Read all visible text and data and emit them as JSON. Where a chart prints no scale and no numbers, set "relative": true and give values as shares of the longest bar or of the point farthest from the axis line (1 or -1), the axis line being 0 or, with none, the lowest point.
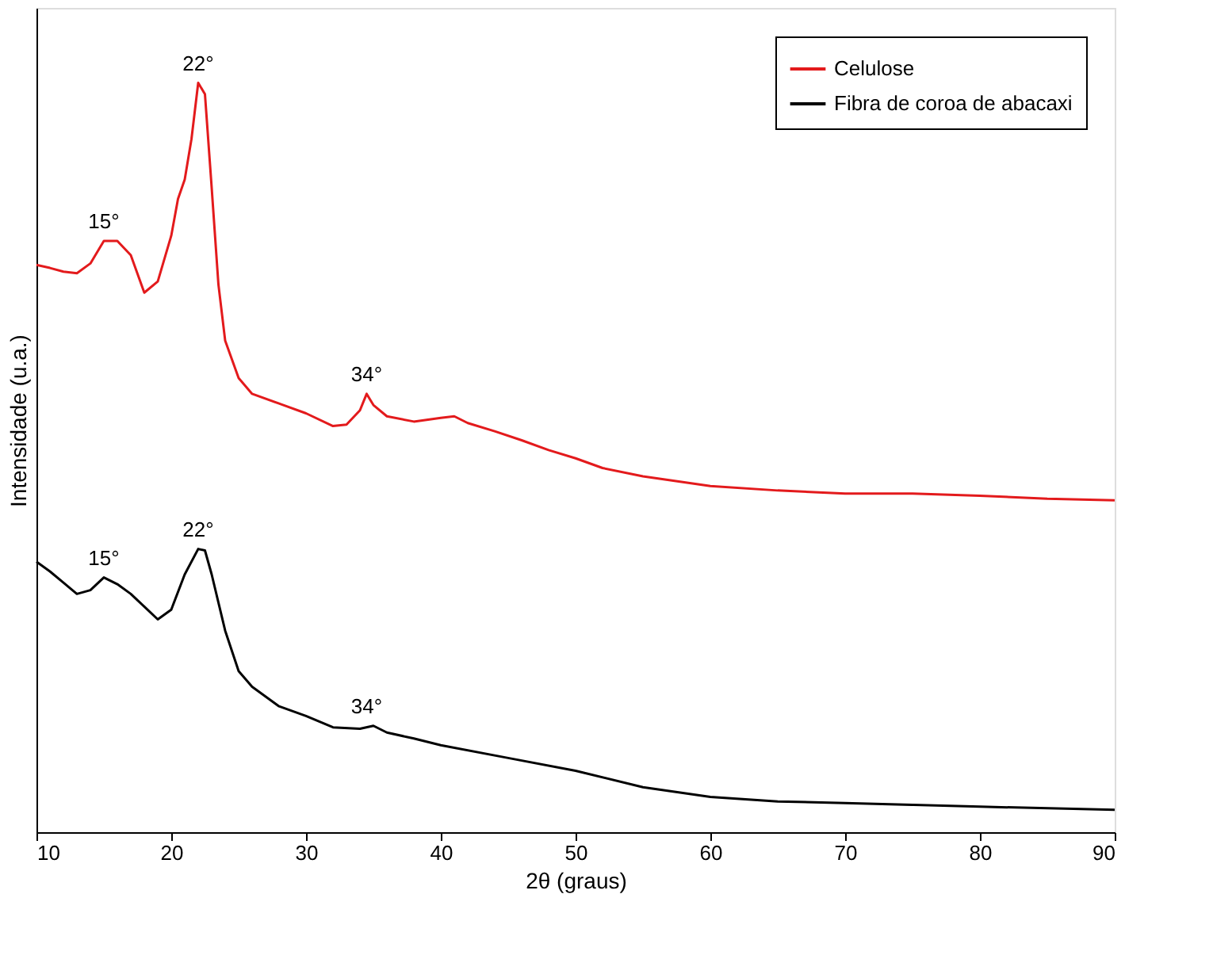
{
  "chart_data": {
    "type": "line",
    "relative": true,
    "xlabel": "2θ (graus)",
    "ylabel": "Intensidade (u.a.)",
    "xlim": [
      10,
      90
    ],
    "xticks": [
      10,
      20,
      30,
      40,
      50,
      60,
      70,
      80,
      90
    ],
    "tick_labels": "x",
    "grid": false,
    "legend": "top right",
    "line_style": "solid",
    "marker": "none",
    "series": [
      {
        "name": "Celulose",
        "color": "#e31a1c",
        "x": [
          10,
          11,
          12,
          13,
          14,
          15,
          16,
          17,
          18,
          19,
          20,
          20.5,
          21,
          21.5,
          22,
          22.5,
          23,
          23.5,
          24,
          25,
          26,
          28,
          30,
          32,
          33,
          34,
          34.5,
          35,
          36,
          38,
          40,
          41,
          42,
          44,
          46,
          48,
          50,
          52,
          55,
          60,
          65,
          70,
          75,
          80,
          85,
          90
        ],
        "values": [
          0.757,
          0.753,
          0.748,
          0.746,
          0.759,
          0.789,
          0.789,
          0.77,
          0.72,
          0.735,
          0.796,
          0.845,
          0.871,
          0.925,
          1.0,
          0.985,
          0.86,
          0.731,
          0.656,
          0.606,
          0.585,
          0.572,
          0.559,
          0.542,
          0.544,
          0.563,
          0.585,
          0.57,
          0.555,
          0.548,
          0.553,
          0.555,
          0.546,
          0.535,
          0.523,
          0.51,
          0.499,
          0.486,
          0.475,
          0.462,
          0.456,
          0.452,
          0.452,
          0.449,
          0.445,
          0.443
        ]
      },
      {
        "name": "Fibra de coroa de abacaxi",
        "color": "#000000",
        "x": [
          10,
          11,
          12,
          13,
          14,
          15,
          16,
          17,
          18,
          19,
          20,
          21,
          22,
          22.5,
          23,
          24,
          25,
          26,
          28,
          30,
          32,
          34,
          35,
          36,
          38,
          40,
          45,
          50,
          55,
          60,
          65,
          70,
          80,
          90
        ],
        "values": [
          0.361,
          0.348,
          0.333,
          0.318,
          0.323,
          0.34,
          0.331,
          0.318,
          0.301,
          0.284,
          0.297,
          0.344,
          0.378,
          0.376,
          0.344,
          0.269,
          0.215,
          0.194,
          0.168,
          0.155,
          0.14,
          0.138,
          0.142,
          0.133,
          0.125,
          0.116,
          0.099,
          0.082,
          0.06,
          0.047,
          0.041,
          0.039,
          0.034,
          0.03
        ]
      }
    ],
    "annotations": [
      {
        "text": "15°",
        "x": 15,
        "y": 0.789
      },
      {
        "text": "22°",
        "x": 22,
        "y": 1.0
      },
      {
        "text": "34°",
        "x": 34.5,
        "y": 0.585
      },
      {
        "text": "15°",
        "x": 15,
        "y": 0.34
      },
      {
        "text": "22°",
        "x": 22,
        "y": 0.378
      },
      {
        "text": "34°",
        "x": 34.5,
        "y": 0.142
      }
    ]
  }
}
